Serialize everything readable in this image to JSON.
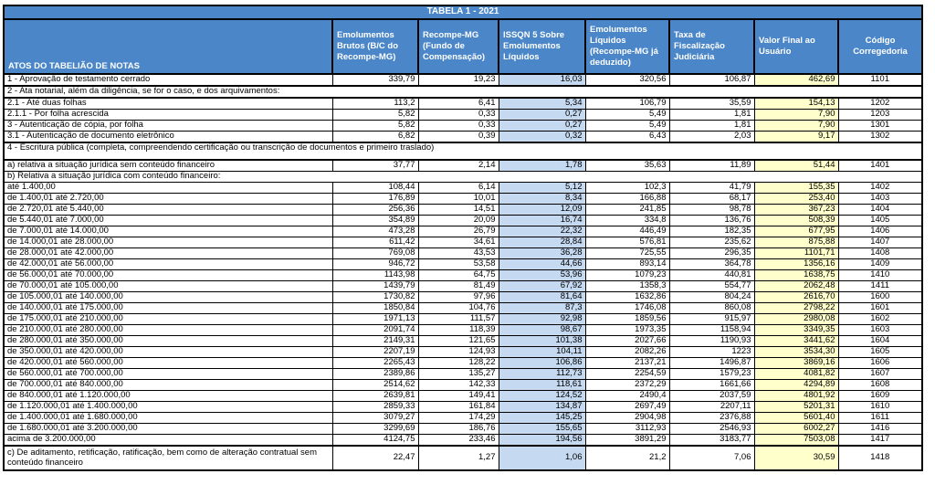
{
  "title": "TABELA 1 - 2021",
  "colors": {
    "header_bg": "#4a86c8",
    "header_text": "#ffffff",
    "issqn_column_bg": "#c5d9f1",
    "valor_final_column_bg": "#ffffcc",
    "border": "#000000"
  },
  "table": {
    "columns": [
      {
        "header": "ATOS DO TABELIÃO DE NOTAS"
      },
      {
        "header": "Emolumentos Brutos (B/C do Recompe-MG)"
      },
      {
        "header": "Recompe-MG (Fundo de Compensação)"
      },
      {
        "header": "ISSQN 5 Sobre Emolumentos Líquidos"
      },
      {
        "header": "Emolumentos Líquidos (Recompe-MG já deduzido)"
      },
      {
        "header": "Taxa de Fiscalização Judiciária"
      },
      {
        "header": "Valor Final ao Usuário"
      },
      {
        "header": "Código Corregedoria"
      }
    ],
    "rows": [
      {
        "type": "data",
        "label": "1 - Aprovação de testamento cerrado",
        "values": [
          "339,79",
          "19,23",
          "16,03",
          "320,56",
          "106,87",
          "462,69"
        ],
        "code": "1101"
      },
      {
        "type": "span",
        "label": "2 - Ata notarial, além da diligência, se for o caso, e dos arquivamentos:",
        "section": true
      },
      {
        "type": "data",
        "label": "2.1 - Até duas folhas",
        "values": [
          "113,2",
          "6,41",
          "5,34",
          "106,79",
          "35,59",
          "154,13"
        ],
        "code": "1202"
      },
      {
        "type": "data",
        "label": "2.1.1 - Por folha acrescida",
        "values": [
          "5,82",
          "0,33",
          "0,27",
          "5,49",
          "1,81",
          "7,90"
        ],
        "code": "1203"
      },
      {
        "type": "data",
        "label": "3 - Autenticação de cópia, por folha",
        "values": [
          "5,82",
          "0,33",
          "0,27",
          "5,49",
          "1,81",
          "7,90"
        ],
        "code": "1301"
      },
      {
        "type": "data",
        "label": "3.1 - Autenticação de documento eletrônico",
        "values": [
          "6,82",
          "0,39",
          "0,32",
          "6,43",
          "2,03",
          "9,17"
        ],
        "code": "1302"
      },
      {
        "type": "span",
        "label": "4 - Escritura pública (completa, compreendendo certificação ou transcrição de documentos e primeiro traslado)",
        "section": true,
        "tall": true
      },
      {
        "type": "data",
        "label": "a) relativa a situação jurídica sem conteúdo financeiro",
        "values": [
          "37,77",
          "2,14",
          "1,78",
          "35,63",
          "11,89",
          "51,44"
        ],
        "code": "1401",
        "sectionTop": true
      },
      {
        "type": "span",
        "label": "b) Relativa a situação jurídica com conteúdo financeiro:"
      },
      {
        "type": "data",
        "label": "até 1.400,00",
        "values": [
          "108,44",
          "6,14",
          "5,12",
          "102,3",
          "41,79",
          "155,35"
        ],
        "code": "1402"
      },
      {
        "type": "data",
        "label": "de 1.400,01 até 2.720,00",
        "values": [
          "176,89",
          "10,01",
          "8,34",
          "166,88",
          "68,17",
          "253,40"
        ],
        "code": "1403"
      },
      {
        "type": "data",
        "label": "de 2.720,01 até 5.440,00",
        "values": [
          "256,36",
          "14,51",
          "12,09",
          "241,85",
          "98,78",
          "367,23"
        ],
        "code": "1404"
      },
      {
        "type": "data",
        "label": "de 5.440,01 até 7.000,00",
        "values": [
          "354,89",
          "20,09",
          "16,74",
          "334,8",
          "136,76",
          "508,39"
        ],
        "code": "1405"
      },
      {
        "type": "data",
        "label": "de 7.000,01 até 14.000,00",
        "values": [
          "473,28",
          "26,79",
          "22,32",
          "446,49",
          "182,35",
          "677,95"
        ],
        "code": "1406"
      },
      {
        "type": "data",
        "label": "de 14.000,01 até 28.000,00",
        "values": [
          "611,42",
          "34,61",
          "28,84",
          "576,81",
          "235,62",
          "875,88"
        ],
        "code": "1407"
      },
      {
        "type": "data",
        "label": "de 28.000,01 até 42.000,00",
        "values": [
          "769,08",
          "43,53",
          "36,28",
          "725,55",
          "296,35",
          "1101,71"
        ],
        "code": "1408"
      },
      {
        "type": "data",
        "label": "de 42.000,01 até 56.000,00",
        "values": [
          "946,72",
          "53,58",
          "44,66",
          "893,14",
          "364,78",
          "1356,16"
        ],
        "code": "1409"
      },
      {
        "type": "data",
        "label": "de 56.000,01 até 70.000,00",
        "values": [
          "1143,98",
          "64,75",
          "53,96",
          "1079,23",
          "440,81",
          "1638,75"
        ],
        "code": "1410"
      },
      {
        "type": "data",
        "label": "de 70.000,01 até 105.000,00",
        "values": [
          "1439,79",
          "81,49",
          "67,92",
          "1358,3",
          "554,77",
          "2062,48"
        ],
        "code": "1411"
      },
      {
        "type": "data",
        "label": "de 105.000,01 até 140.000,00",
        "values": [
          "1730,82",
          "97,96",
          "81,64",
          "1632,86",
          "804,24",
          "2616,70"
        ],
        "code": "1600"
      },
      {
        "type": "data",
        "label": "de 140.000,01 até 175.000,00",
        "values": [
          "1850,84",
          "104,76",
          "87,3",
          "1746,08",
          "860,08",
          "2798,22"
        ],
        "code": "1601"
      },
      {
        "type": "data",
        "label": "de 175.000,01 até 210.000,00",
        "values": [
          "1971,13",
          "111,57",
          "92,98",
          "1859,56",
          "915,97",
          "2980,08"
        ],
        "code": "1602"
      },
      {
        "type": "data",
        "label": "de 210.000,01 até 280.000,00",
        "values": [
          "2091,74",
          "118,39",
          "98,67",
          "1973,35",
          "1158,94",
          "3349,35"
        ],
        "code": "1603"
      },
      {
        "type": "data",
        "label": "de 280.000,01 até 350.000,00",
        "values": [
          "2149,31",
          "121,65",
          "101,38",
          "2027,66",
          "1190,93",
          "3441,62"
        ],
        "code": "1604"
      },
      {
        "type": "data",
        "label": "de 350.000,01 até 420.000,00",
        "values": [
          "2207,19",
          "124,93",
          "104,11",
          "2082,26",
          "1223",
          "3534,30"
        ],
        "code": "1605"
      },
      {
        "type": "data",
        "label": "de 420.000,01 até 560.000,00",
        "values": [
          "2265,43",
          "128,22",
          "106,86",
          "2137,21",
          "1496,87",
          "3869,16"
        ],
        "code": "1606"
      },
      {
        "type": "data",
        "label": "de 560.000,01 até 700.000,00",
        "values": [
          "2389,86",
          "135,27",
          "112,73",
          "2254,59",
          "1579,23",
          "4081,82"
        ],
        "code": "1607"
      },
      {
        "type": "data",
        "label": "de 700.000,01 até 840.000,00",
        "values": [
          "2514,62",
          "142,33",
          "118,61",
          "2372,29",
          "1661,66",
          "4294,89"
        ],
        "code": "1608"
      },
      {
        "type": "data",
        "label": "de 840.000,01 até 1.120.000,00",
        "values": [
          "2639,81",
          "149,41",
          "124,52",
          "2490,4",
          "2037,59",
          "4801,92"
        ],
        "code": "1609"
      },
      {
        "type": "data",
        "label": "de 1.120.000,01 até 1.400.000,00",
        "values": [
          "2859,33",
          "161,84",
          "134,87",
          "2697,49",
          "2207,11",
          "5201,31"
        ],
        "code": "1610"
      },
      {
        "type": "data",
        "label": "de 1.400.000,01 até 1.680.000,00",
        "values": [
          "3079,27",
          "174,29",
          "145,25",
          "2904,98",
          "2376,88",
          "5601,40"
        ],
        "code": "1611"
      },
      {
        "type": "data",
        "label": "de 1.680.000,01 até 3.200.000,00",
        "values": [
          "3299,69",
          "186,76",
          "155,65",
          "3112,93",
          "2546,93",
          "6002,27"
        ],
        "code": "1416"
      },
      {
        "type": "data",
        "label": "acima de 3.200.000,00",
        "values": [
          "4124,75",
          "233,46",
          "194,56",
          "3891,29",
          "3183,77",
          "7503,08"
        ],
        "code": "1417"
      },
      {
        "type": "data",
        "label": "c) De aditamento, retificação, ratificação, bem como de alteração contratual sem conteúdo financeiro",
        "values": [
          "22,47",
          "1,27",
          "1,06",
          "21,2",
          "7,06",
          "30,59"
        ],
        "code": "1418",
        "sectionTop": true,
        "twoline": true
      }
    ]
  }
}
